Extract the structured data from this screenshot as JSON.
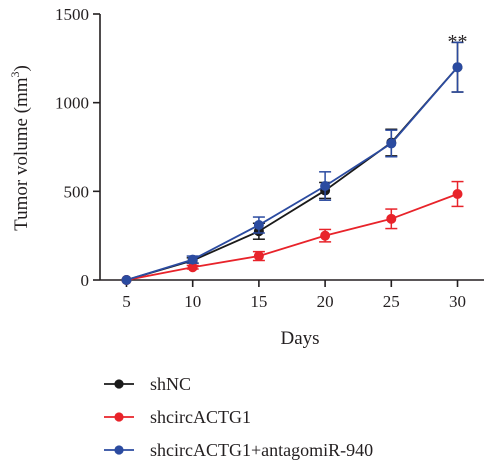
{
  "chart_data": {
    "type": "line",
    "xlabel": "Days",
    "ylabel": "Tumor volume (mm",
    "ylabel_sup": "3",
    "ylabel_close": ")",
    "x": [
      5,
      10,
      15,
      20,
      25,
      30
    ],
    "xticks": [
      5,
      10,
      15,
      20,
      25,
      30
    ],
    "yticks": [
      0,
      500,
      1000,
      1500
    ],
    "xlim": [
      3,
      32
    ],
    "ylim": [
      0,
      1500
    ],
    "grid": false,
    "legend_position": "bottom-left",
    "annotation": {
      "text": "**",
      "x": 30,
      "y": 1330
    },
    "series": [
      {
        "name": "shNC",
        "color": "#1a1a1a",
        "values": [
          0,
          110,
          275,
          505,
          775,
          1200
        ],
        "errors": [
          0,
          15,
          45,
          45,
          75,
          140
        ]
      },
      {
        "name": "shcircACTG1",
        "color": "#e8232a",
        "values": [
          0,
          72,
          135,
          250,
          345,
          485
        ],
        "errors": [
          0,
          10,
          25,
          35,
          55,
          70
        ]
      },
      {
        "name": "shcircACTG1+antagomiR-940",
        "color": "#2b4ba0",
        "values": [
          0,
          115,
          310,
          530,
          770,
          1200
        ],
        "errors": [
          0,
          20,
          45,
          80,
          75,
          140
        ]
      }
    ]
  }
}
